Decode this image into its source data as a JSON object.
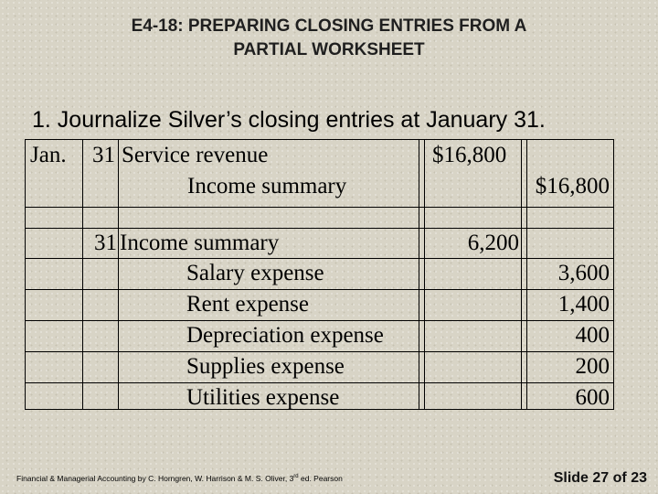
{
  "title": {
    "line1": "E4-18:  PREPARING CLOSING ENTRIES FROM A",
    "line2": "PARTIAL WORKSHEET"
  },
  "instruction": "1. Journalize Silver’s closing entries at January 31.",
  "entries": {
    "entry1": {
      "month": "Jan.",
      "day": "31",
      "debit_account": "Service revenue",
      "debit_amount": "$16,800",
      "credit_account": "Income summary",
      "credit_amount": "$16,800"
    },
    "entry2": {
      "day": "31",
      "debit_account": "Income summary",
      "debit_amount": "6,200",
      "credits": [
        {
          "account": "Salary expense",
          "amount": "3,600"
        },
        {
          "account": "Rent expense",
          "amount": "1,400"
        },
        {
          "account": "Depreciation expense",
          "amount": "400"
        },
        {
          "account": "Supplies expense",
          "amount": "200"
        },
        {
          "account": "Utilities expense",
          "amount": "600"
        }
      ]
    }
  },
  "footer": {
    "citation_main": "Financial & Managerial Accounting by C. Horngren, W. Harrison & M. S. Oliver, 3",
    "citation_sup": "rd",
    "citation_end": " ed. Pearson",
    "slide_prefix": "Slide ",
    "slide_current": "27",
    "slide_of": " of ",
    "slide_total": "23"
  }
}
